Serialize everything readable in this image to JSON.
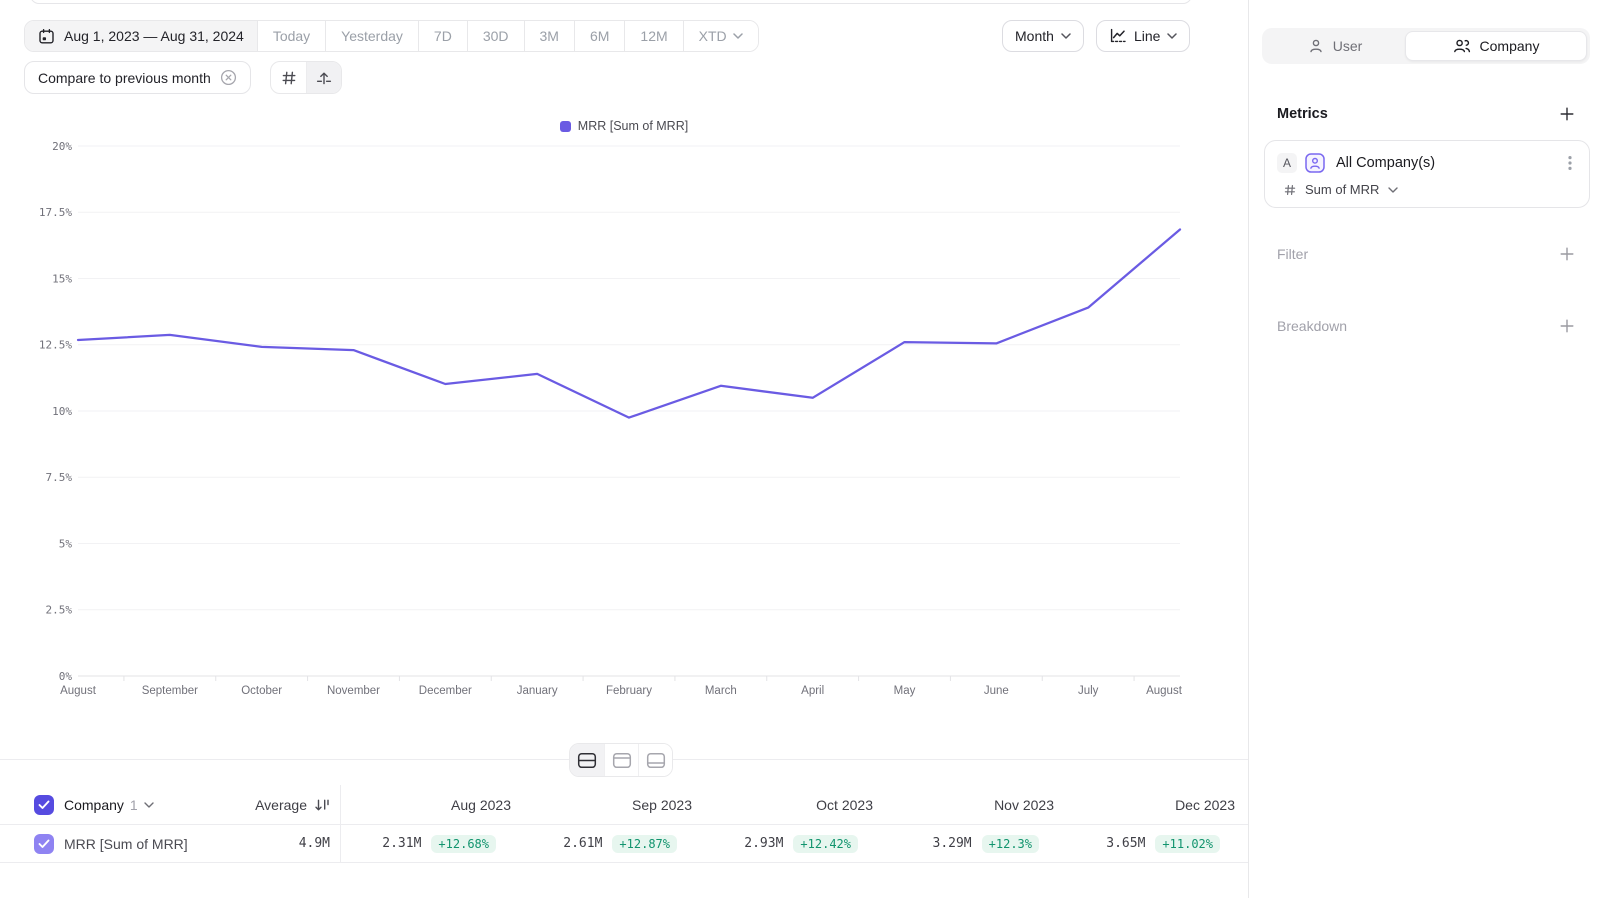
{
  "toolbar": {
    "date_range": "Aug 1, 2023 — Aug 31, 2024",
    "quick_ranges": [
      "Today",
      "Yesterday",
      "7D",
      "30D",
      "3M",
      "6M",
      "12M",
      "XTD"
    ],
    "compare_label": "Compare to previous month",
    "granularity": "Month",
    "chart_type": "Line"
  },
  "entity_toggle": {
    "user": "User",
    "company": "Company",
    "selected": "Company"
  },
  "sidebar": {
    "metrics_title": "Metrics",
    "metric": {
      "letter": "A",
      "name": "All Company(s)",
      "aggregation": "Sum of MRR"
    },
    "filter_label": "Filter",
    "breakdown_label": "Breakdown"
  },
  "chart_data": {
    "type": "line",
    "legend": [
      {
        "label": "MRR [Sum of MRR]",
        "color": "#6a5be3"
      }
    ],
    "legend_position": "top",
    "x_labels": [
      "August",
      "September",
      "October",
      "November",
      "December",
      "January",
      "February",
      "March",
      "April",
      "May",
      "June",
      "July",
      "August"
    ],
    "y_ticks": [
      "20%",
      "17.5%",
      "15%",
      "12.5%",
      "10%",
      "7.5%",
      "5%",
      "2.5%",
      "0%"
    ],
    "ylim": [
      0,
      20
    ],
    "unit": "%",
    "grid": true,
    "series": [
      {
        "name": "MRR [Sum of MRR]",
        "color": "#6a5be3",
        "values": [
          12.68,
          12.87,
          12.42,
          12.3,
          11.02,
          11.4,
          9.75,
          10.95,
          10.5,
          12.6,
          12.55,
          13.9,
          16.85
        ]
      }
    ]
  },
  "table": {
    "group_label": "Company",
    "group_count": "1",
    "average_label": "Average",
    "columns": [
      "Average",
      "Aug 2023",
      "Sep 2023",
      "Oct 2023",
      "Nov 2023",
      "Dec 2023"
    ],
    "rows": [
      {
        "name": "MRR [Sum of MRR]",
        "average": "4.9M",
        "cells": [
          {
            "value": "2.31M",
            "delta": "+12.68%"
          },
          {
            "value": "2.61M",
            "delta": "+12.87%"
          },
          {
            "value": "2.93M",
            "delta": "+12.42%"
          },
          {
            "value": "3.29M",
            "delta": "+12.3%"
          },
          {
            "value": "3.65M",
            "delta": "+11.02%"
          }
        ]
      }
    ],
    "delta_color": "#12946e",
    "delta_bg": "#e7f6ef"
  }
}
